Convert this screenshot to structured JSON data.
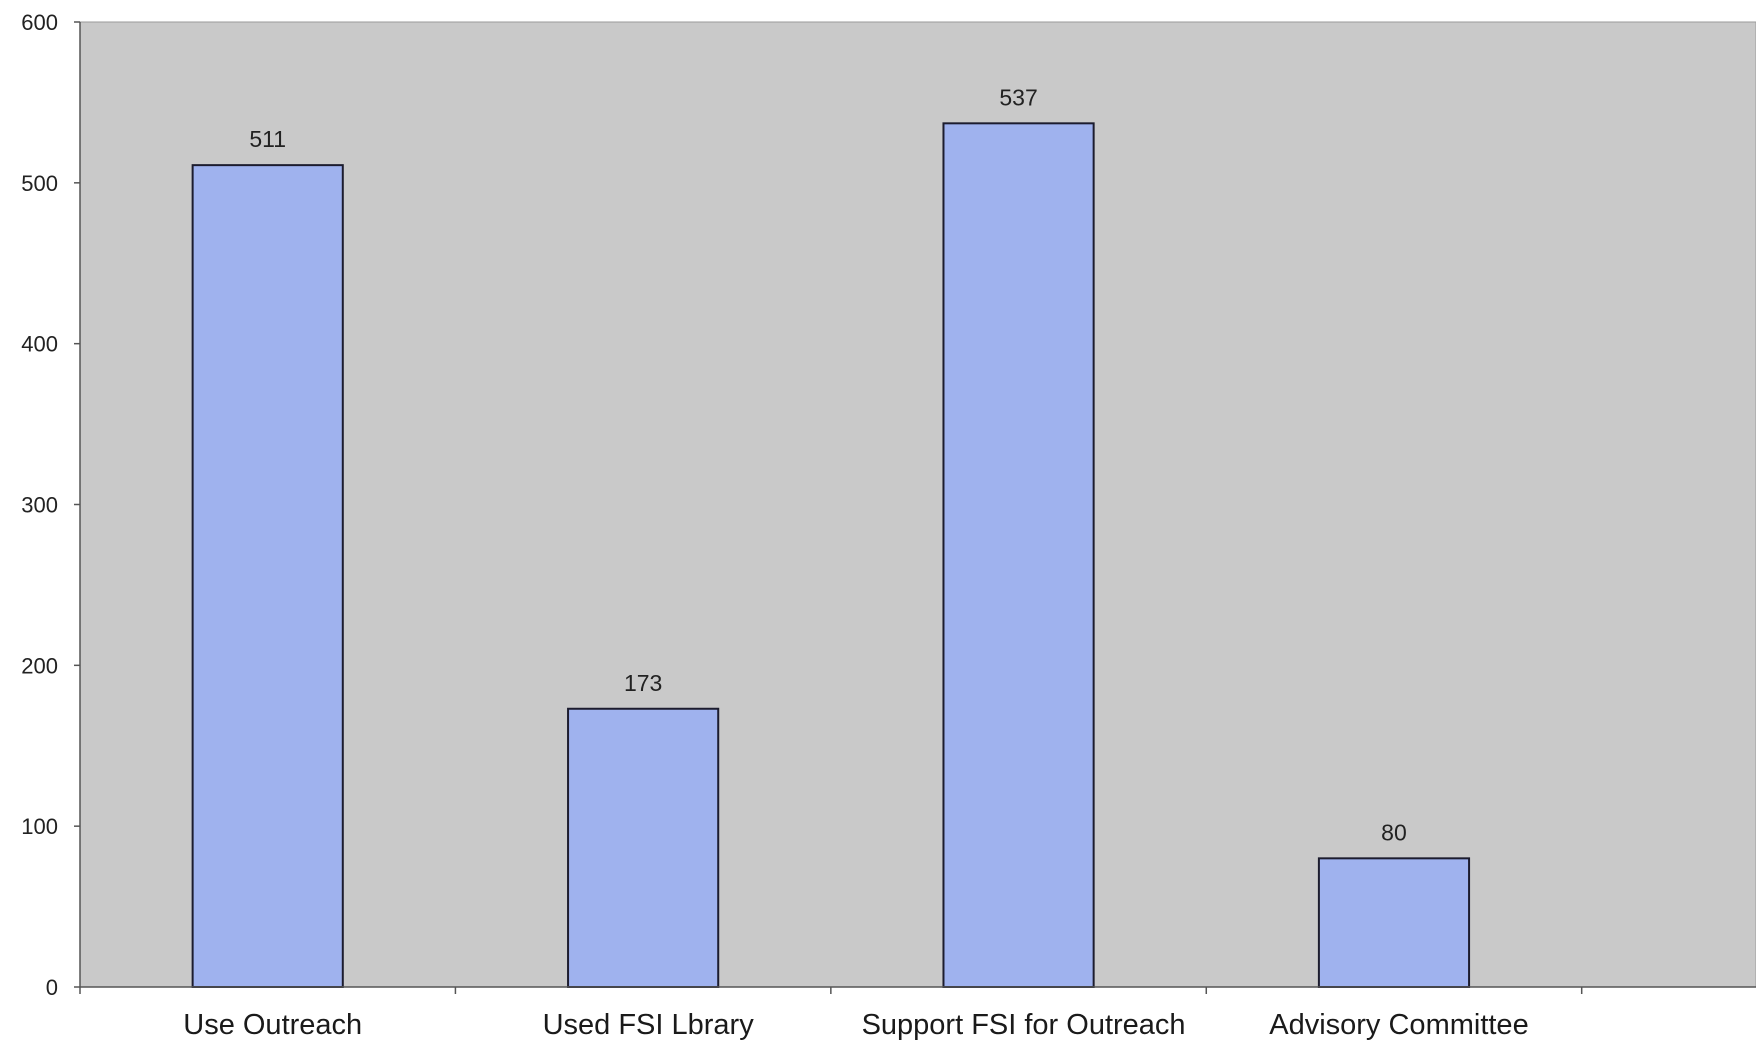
{
  "chart_data": {
    "type": "bar",
    "title": "",
    "xlabel": "",
    "ylabel": "",
    "categories": [
      "Use Outreach",
      "Used FSI Lbrary",
      "Support FSI for Outreach",
      "Advisory Committee"
    ],
    "values": [
      511,
      173,
      537,
      80
    ],
    "data_labels": [
      "511",
      "173",
      "537",
      "80"
    ],
    "ylim": [
      0,
      600
    ],
    "yticks": [
      0,
      100,
      200,
      300,
      400,
      500,
      600
    ],
    "ytick_labels": [
      "0",
      "100",
      "200",
      "300",
      "400",
      "500",
      "600"
    ],
    "grid": false,
    "legend": "none",
    "colors": {
      "bar_fill": "#9fb2ee",
      "bar_stroke": "#1c1c2e",
      "plot_background": "#c9c9c9",
      "axis": "#555555",
      "page_background": "#ffffff"
    }
  }
}
